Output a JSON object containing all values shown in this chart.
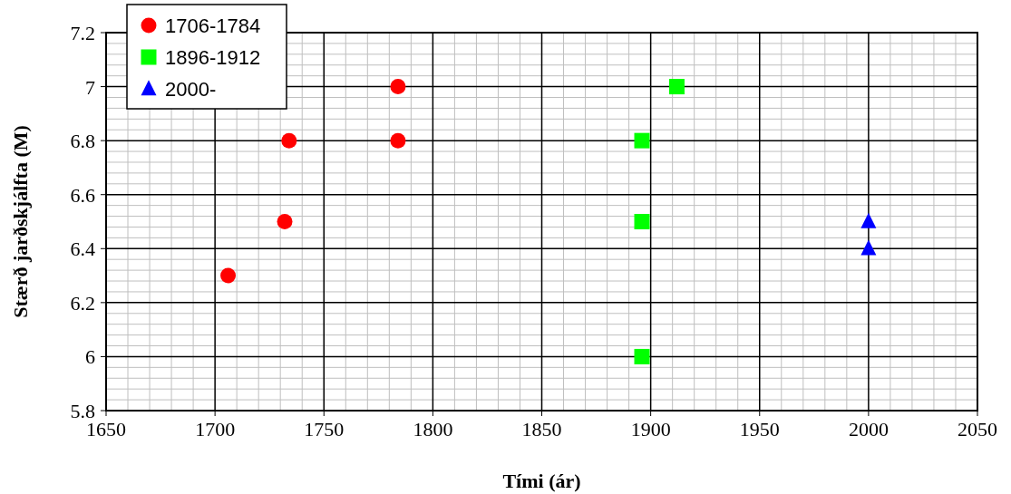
{
  "chart_data": {
    "type": "scatter",
    "xlabel": "Tími (ár)",
    "ylabel": "Stærð jarðskjálfta (M)",
    "xlim": [
      1650,
      2050
    ],
    "xticks": [
      1650,
      1700,
      1750,
      1800,
      1850,
      1900,
      1950,
      2000,
      2050
    ],
    "ylim": [
      5.8,
      7.2
    ],
    "yticks": [
      5.8,
      6,
      6.2,
      6.4,
      6.6,
      6.8,
      7,
      7.2
    ],
    "grid": true,
    "legend": "top left",
    "series": [
      {
        "name": "1706-1784",
        "color": "#ff0000",
        "marker": "circle",
        "x": [
          1706,
          1732,
          1734,
          1784,
          1784
        ],
        "values": [
          6.3,
          6.5,
          6.8,
          6.8,
          7.0
        ]
      },
      {
        "name": "1896-1912",
        "color": "#00ff00",
        "marker": "square",
        "x": [
          1896,
          1896,
          1896,
          1912
        ],
        "values": [
          6.0,
          6.5,
          6.8,
          7.0
        ]
      },
      {
        "name": "2000-",
        "color": "#0000ff",
        "marker": "triangle",
        "x": [
          2000,
          2000
        ],
        "values": [
          6.5,
          6.4
        ]
      }
    ]
  }
}
